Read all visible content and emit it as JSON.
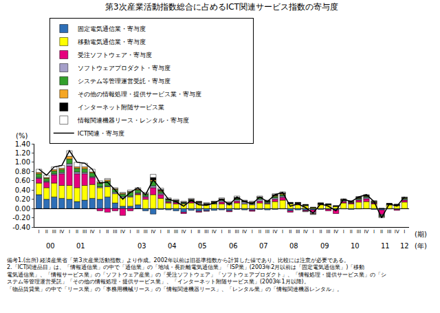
{
  "chart_data": {
    "type": "bar",
    "stacked": true,
    "grid": false,
    "title": "第3次産業活動指数総合に占めるICT関連サービス指数の寄与度",
    "y_label": "(%)",
    "x_label": "(期)",
    "x_group_label": "(年)",
    "ylim": [
      -0.4,
      1.4
    ],
    "yticks": [
      {
        "value": -0.4,
        "label": "-0.40"
      },
      {
        "value": -0.2,
        "label": "-0.20"
      },
      {
        "value": 0,
        "label": "0.00"
      },
      {
        "value": 0.2,
        "label": "0.20"
      },
      {
        "value": 0.4,
        "label": "0.40"
      },
      {
        "value": 0.6,
        "label": "0.60"
      },
      {
        "value": 0.8,
        "label": "0.80"
      },
      {
        "value": 1.0,
        "label": "1.00"
      },
      {
        "value": 1.2,
        "label": "1.20"
      },
      {
        "value": 1.4,
        "label": "1.40"
      }
    ],
    "categories": [
      "I",
      "II",
      "III",
      "IV",
      "I",
      "II",
      "III",
      "IV",
      "I",
      "II",
      "III",
      "IV",
      "I",
      "II",
      "III",
      "IV",
      "I",
      "II",
      "III",
      "IV",
      "I",
      "II",
      "III",
      "IV",
      "I",
      "II",
      "III",
      "IV",
      "I",
      "II",
      "III",
      "IV",
      "I",
      "II",
      "III",
      "IV",
      "I",
      "II",
      "III",
      "IV",
      "I",
      "II",
      "III",
      "IV",
      "I",
      "II",
      "III",
      "IV",
      "I"
    ],
    "category_groups": [
      "00",
      "00",
      "00",
      "00",
      "01",
      "01",
      "01",
      "01",
      null,
      null,
      null,
      null,
      "03",
      "03",
      "03",
      "03",
      "04",
      "04",
      "04",
      "04",
      "05",
      "05",
      "05",
      "05",
      "06",
      "06",
      "06",
      "06",
      "07",
      "07",
      "07",
      "07",
      "08",
      "08",
      "08",
      "08",
      "09",
      "09",
      "09",
      "09",
      "10",
      "10",
      "10",
      "10",
      "11",
      "11",
      "11",
      "11",
      "12"
    ],
    "series": [
      {
        "name": "固定電気通信業・寄与度",
        "type": "bar",
        "color": "#2e6fb7",
        "values": [
          0.3,
          0.2,
          0.25,
          0.22,
          0.2,
          0.15,
          0.18,
          0.22,
          0.2,
          0.25,
          0.12,
          0.05,
          0.05,
          0.08,
          -0.05,
          -0.12,
          -0.02,
          -0.03,
          -0.05,
          -0.08,
          -0.04,
          -0.06,
          -0.05,
          -0.04,
          -0.03,
          -0.05,
          -0.02,
          -0.03,
          -0.04,
          -0.02,
          -0.03,
          -0.02,
          -0.01,
          -0.05,
          -0.03,
          -0.04,
          -0.03,
          -0.02,
          -0.02,
          -0.03,
          -0.01,
          -0.02,
          -0.01,
          0.0,
          -0.02,
          -0.03,
          -0.01,
          -0.02,
          0.0
        ]
      },
      {
        "name": "移動電気通信業・寄与度",
        "type": "bar",
        "color": "#ffff00",
        "values": [
          0.25,
          0.25,
          0.3,
          0.28,
          0.3,
          0.3,
          0.32,
          0.3,
          0.25,
          0.22,
          0.2,
          0.18,
          0.2,
          0.22,
          0.2,
          0.3,
          0.22,
          0.12,
          0.1,
          0.1,
          0.12,
          0.1,
          0.08,
          0.1,
          0.1,
          0.08,
          0.12,
          0.1,
          0.08,
          0.12,
          0.1,
          0.15,
          0.18,
          0.1,
          0.08,
          0.06,
          0.02,
          0.08,
          0.08,
          0.05,
          0.12,
          0.1,
          0.14,
          0.15,
          0.1,
          0.0,
          0.08,
          0.06,
          0.14
        ]
      },
      {
        "name": "受注ソフトウェア・寄与度",
        "type": "bar",
        "color": "#e6007e",
        "values": [
          0.1,
          0.12,
          0.18,
          0.25,
          0.42,
          0.3,
          0.25,
          0.15,
          -0.05,
          -0.08,
          -0.05,
          -0.15,
          -0.05,
          0.02,
          0.05,
          0.15,
          0.08,
          0.02,
          0.03,
          -0.03,
          0.03,
          -0.02,
          -0.01,
          0.0,
          0.04,
          -0.02,
          0.04,
          0.0,
          -0.02,
          0.04,
          0.01,
          0.05,
          0.06,
          -0.03,
          0.02,
          -0.02,
          -0.05,
          0.01,
          -0.03,
          -0.08,
          0.03,
          0.02,
          0.04,
          0.06,
          0.02,
          -0.1,
          0.0,
          -0.02,
          0.04
        ]
      },
      {
        "name": "ソフトウェアプロダクト・寄与度",
        "type": "bar",
        "color": "#a59fc9",
        "values": [
          0.02,
          0.02,
          0.02,
          0.03,
          0.05,
          0.04,
          0.03,
          0.02,
          0.02,
          0.02,
          0.03,
          0.03,
          0.02,
          0.02,
          0.02,
          0.04,
          0.03,
          0.02,
          0.01,
          0.01,
          0.01,
          0.02,
          0.01,
          0.01,
          0.03,
          0.02,
          0.03,
          0.04,
          0.02,
          0.04,
          0.02,
          0.03,
          0.03,
          0.01,
          0.01,
          0.01,
          -0.03,
          0.01,
          0.0,
          0.0,
          0.02,
          0.01,
          0.02,
          0.03,
          0.01,
          -0.02,
          0.01,
          0.01,
          0.02
        ]
      },
      {
        "name": "システム等管理運営受託・寄与度",
        "type": "bar",
        "color": "#33a02c",
        "values": [
          0.08,
          0.06,
          0.06,
          0.06,
          0.1,
          0.08,
          0.08,
          0.08,
          0.08,
          0.1,
          0.06,
          0.05,
          0.08,
          0.06,
          0.04,
          0.1,
          0.04,
          0.03,
          0.02,
          0.02,
          0.02,
          0.01,
          0.01,
          0.02,
          0.02,
          0.02,
          0.02,
          0.01,
          0.02,
          0.03,
          0.02,
          0.03,
          0.03,
          0.01,
          0.01,
          0.01,
          0.0,
          0.01,
          0.01,
          0.0,
          0.01,
          0.01,
          0.02,
          0.02,
          0.01,
          -0.02,
          0.01,
          0.01,
          0.02
        ]
      },
      {
        "name": "その他の情報処理・提供サービス業・寄与度",
        "type": "bar",
        "color": "#f5a623",
        "values": [
          0.03,
          0.02,
          0.03,
          0.03,
          0.06,
          0.03,
          0.04,
          0.02,
          0.02,
          0.03,
          0.02,
          0.02,
          0.02,
          0.02,
          0.01,
          0.03,
          0.02,
          0.01,
          0.01,
          0.0,
          0.01,
          0.01,
          0.0,
          0.01,
          0.01,
          0.0,
          0.01,
          0.01,
          0.01,
          0.01,
          0.01,
          0.02,
          0.02,
          0.0,
          0.0,
          0.0,
          -0.01,
          0.0,
          0.0,
          0.0,
          0.01,
          0.01,
          0.01,
          0.01,
          0.01,
          -0.01,
          0.0,
          0.0,
          0.01
        ]
      },
      {
        "name": "インターネット附随サービス業",
        "type": "bar",
        "color": "#000000",
        "values": [
          null,
          null,
          null,
          null,
          null,
          null,
          null,
          null,
          null,
          null,
          null,
          null,
          0.0,
          0.0,
          0.0,
          0.05,
          0.02,
          0.01,
          0.01,
          0.01,
          0.01,
          0.01,
          0.01,
          0.01,
          0.01,
          0.01,
          0.02,
          0.01,
          0.01,
          0.01,
          0.01,
          0.02,
          0.02,
          0.01,
          0.01,
          0.01,
          0.01,
          0.01,
          0.01,
          0.01,
          0.01,
          0.01,
          0.02,
          0.02,
          0.01,
          0.0,
          0.01,
          0.01,
          0.01
        ]
      },
      {
        "name": "情報関連機器リース・レンタル・寄与度",
        "type": "bar",
        "color": "#ffffff",
        "values": [
          0.07,
          0.05,
          0.06,
          0.06,
          0.12,
          0.1,
          0.08,
          0.06,
          0.03,
          0.03,
          0.02,
          0.02,
          0.03,
          0.03,
          0.03,
          0.07,
          0.03,
          0.02,
          0.02,
          0.02,
          0.02,
          0.01,
          0.02,
          0.01,
          0.02,
          0.02,
          0.03,
          0.01,
          0.02,
          0.02,
          0.01,
          0.02,
          0.02,
          0.0,
          0.0,
          -0.01,
          -0.01,
          0.0,
          0.0,
          0.0,
          0.01,
          0.01,
          0.01,
          0.01,
          0.01,
          -0.02,
          0.0,
          0.0,
          0.01
        ]
      },
      {
        "name": "ICT関連・寄与度",
        "type": "line",
        "color": "#000000",
        "values": [
          0.85,
          0.72,
          0.9,
          0.93,
          1.25,
          1.0,
          0.98,
          0.85,
          0.55,
          0.57,
          0.4,
          0.2,
          0.35,
          0.45,
          0.3,
          0.62,
          0.42,
          0.2,
          0.15,
          0.05,
          0.18,
          0.08,
          0.07,
          0.12,
          0.2,
          0.08,
          0.25,
          0.15,
          0.1,
          0.25,
          0.15,
          0.3,
          0.35,
          0.05,
          0.1,
          0.02,
          -0.1,
          0.1,
          0.05,
          -0.05,
          0.2,
          0.15,
          0.25,
          0.3,
          0.15,
          -0.2,
          0.1,
          0.05,
          0.25
        ]
      }
    ],
    "notes": [
      "備考1.(出所) 経済産業省「第3次産業活動指数」より作成。2002年以前は旧基準指数から計算した値であり、比較には注意が必要である。",
      "2.「ICT関連品目」は、「情報通信業」の中で「通信業」の「地域・長距離電気通信業」「ISP業」(2003年2月以前は「固定電気通信業」)「移動",
      "電気通信業」、「情報サービス業」の「ソフトウェア産業」の「受注ソフトウェア」「ソフトウェアプロダクト」、「情報処理・提供サービス業」の「シ",
      "ステム等管理運営受託」「その他の情報処理・提供サービス業」、「インターネット附随サービス業」(2003年1月以降)。",
      "「物品賃貸業」の中で「リース業」の「事務用機械リース」の「情報関連機器リース」、「レンタル業」の「情報関連機器レンタル」。"
    ]
  }
}
